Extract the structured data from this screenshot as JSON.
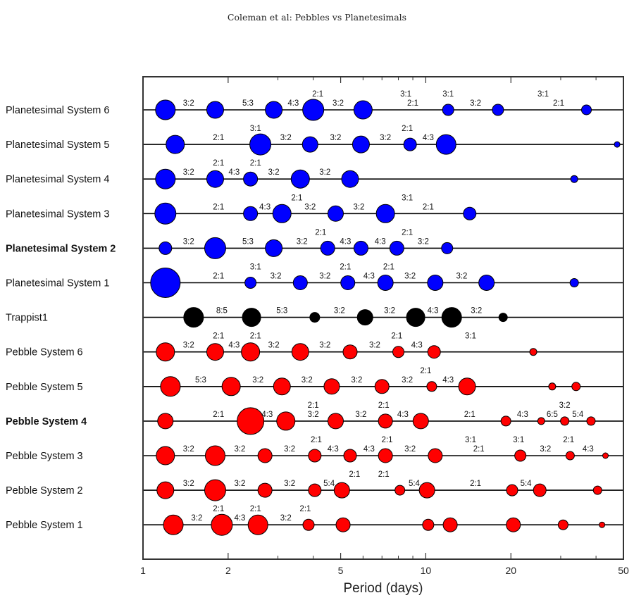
{
  "header": {
    "running_title": "Coleman et al: Pebbles vs Planetesimals"
  },
  "colors": {
    "planetesimal": "#0000ff",
    "trappist": "#000000",
    "pebble": "#ff0000"
  },
  "chart_data": {
    "type": "scatter",
    "xlabel": "Period (days)",
    "xscale": "log",
    "xlim": [
      1,
      50
    ],
    "xticks": [
      {
        "v": 1,
        "label": "1"
      },
      {
        "v": 2,
        "label": "2"
      },
      {
        "v": 5,
        "label": "5"
      },
      {
        "v": 10,
        "label": "10"
      },
      {
        "v": 20,
        "label": "20"
      },
      {
        "v": 50,
        "label": "50"
      }
    ],
    "rows": [
      {
        "label": "Planetesimal System 6",
        "bold": false,
        "color": "planetesimal",
        "planets": [
          [
            1.2,
            14
          ],
          [
            1.8,
            12
          ],
          [
            2.9,
            12
          ],
          [
            4.0,
            15
          ],
          [
            6.0,
            13
          ],
          [
            12.0,
            8
          ],
          [
            18.0,
            8
          ],
          [
            37.0,
            7
          ]
        ],
        "annotations": [
          [
            1.45,
            "3:2",
            0
          ],
          [
            2.35,
            "5:3",
            0
          ],
          [
            3.4,
            "4:3",
            0
          ],
          [
            4.15,
            "2:1",
            1
          ],
          [
            4.9,
            "3:2",
            0
          ],
          [
            8.5,
            "3:1",
            1
          ],
          [
            9.0,
            "2:1",
            0
          ],
          [
            12.0,
            "3:1",
            1
          ],
          [
            15.0,
            "3:2",
            0
          ],
          [
            26.0,
            "3:1",
            1
          ],
          [
            29.5,
            "2:1",
            0
          ]
        ]
      },
      {
        "label": "Planetesimal System 5",
        "bold": false,
        "color": "planetesimal",
        "planets": [
          [
            1.3,
            13
          ],
          [
            2.6,
            15
          ],
          [
            3.9,
            11
          ],
          [
            5.9,
            12
          ],
          [
            8.8,
            9
          ],
          [
            11.8,
            14
          ],
          [
            47.5,
            4
          ]
        ],
        "annotations": [
          [
            1.85,
            "2:1",
            0
          ],
          [
            2.5,
            "3:1",
            1
          ],
          [
            3.2,
            "3:2",
            0
          ],
          [
            4.8,
            "3:2",
            0
          ],
          [
            7.2,
            "3:2",
            0
          ],
          [
            8.6,
            "2:1",
            1
          ],
          [
            10.2,
            "4:3",
            0
          ]
        ]
      },
      {
        "label": "Planetesimal System 4",
        "bold": false,
        "color": "planetesimal",
        "planets": [
          [
            1.2,
            14
          ],
          [
            1.8,
            12
          ],
          [
            2.4,
            10
          ],
          [
            3.6,
            13
          ],
          [
            5.4,
            12
          ],
          [
            33.5,
            5
          ]
        ],
        "annotations": [
          [
            1.45,
            "3:2",
            0
          ],
          [
            1.85,
            "2:1",
            1
          ],
          [
            2.1,
            "4:3",
            0
          ],
          [
            2.5,
            "2:1",
            1
          ],
          [
            2.9,
            "3:2",
            0
          ],
          [
            4.4,
            "3:2",
            0
          ]
        ]
      },
      {
        "label": "Planetesimal System 3",
        "bold": false,
        "color": "planetesimal",
        "planets": [
          [
            1.2,
            15
          ],
          [
            2.4,
            10
          ],
          [
            3.1,
            13
          ],
          [
            4.8,
            11
          ],
          [
            7.2,
            13
          ],
          [
            14.3,
            9
          ]
        ],
        "annotations": [
          [
            1.85,
            "2:1",
            0
          ],
          [
            2.7,
            "4:3",
            0
          ],
          [
            3.5,
            "2:1",
            1
          ],
          [
            3.9,
            "3:2",
            0
          ],
          [
            5.8,
            "3:2",
            0
          ],
          [
            8.6,
            "3:1",
            1
          ],
          [
            10.2,
            "2:1",
            0
          ]
        ]
      },
      {
        "label": "Planetesimal System 2",
        "bold": true,
        "color": "planetesimal",
        "planets": [
          [
            1.2,
            9
          ],
          [
            1.8,
            15
          ],
          [
            2.9,
            12
          ],
          [
            4.5,
            10
          ],
          [
            5.9,
            10
          ],
          [
            7.9,
            10
          ],
          [
            11.9,
            8
          ]
        ],
        "annotations": [
          [
            1.45,
            "3:2",
            0
          ],
          [
            2.35,
            "5:3",
            0
          ],
          [
            3.65,
            "3:2",
            0
          ],
          [
            4.25,
            "2:1",
            1
          ],
          [
            5.2,
            "4:3",
            0
          ],
          [
            6.9,
            "4:3",
            0
          ],
          [
            8.6,
            "2:1",
            1
          ],
          [
            9.8,
            "3:2",
            0
          ]
        ]
      },
      {
        "label": "Planetesimal System 1",
        "bold": false,
        "color": "planetesimal",
        "planets": [
          [
            1.2,
            21
          ],
          [
            2.4,
            8
          ],
          [
            3.6,
            10
          ],
          [
            5.3,
            10
          ],
          [
            7.2,
            11
          ],
          [
            10.8,
            11
          ],
          [
            16.4,
            11
          ],
          [
            33.5,
            6
          ]
        ],
        "annotations": [
          [
            1.85,
            "2:1",
            0
          ],
          [
            2.5,
            "3:1",
            1
          ],
          [
            2.95,
            "3:2",
            0
          ],
          [
            4.4,
            "3:2",
            0
          ],
          [
            5.2,
            "2:1",
            1
          ],
          [
            6.3,
            "4:3",
            0
          ],
          [
            7.4,
            "2:1",
            1
          ],
          [
            8.8,
            "3:2",
            0
          ],
          [
            13.4,
            "3:2",
            0
          ]
        ]
      },
      {
        "label": "Trappist1",
        "bold": false,
        "color": "trappist",
        "planets": [
          [
            1.51,
            14
          ],
          [
            2.42,
            13
          ],
          [
            4.05,
            7
          ],
          [
            6.1,
            11
          ],
          [
            9.21,
            13
          ],
          [
            12.35,
            14
          ],
          [
            18.77,
            6
          ]
        ],
        "annotations": [
          [
            1.9,
            "8:5",
            0
          ],
          [
            3.1,
            "5:3",
            0
          ],
          [
            4.95,
            "3:2",
            0
          ],
          [
            7.45,
            "3:2",
            0
          ],
          [
            10.6,
            "4:3",
            0
          ],
          [
            15.1,
            "3:2",
            0
          ]
        ]
      },
      {
        "label": "Pebble System 6",
        "bold": false,
        "color": "pebble",
        "planets": [
          [
            1.2,
            13
          ],
          [
            1.8,
            12
          ],
          [
            2.4,
            13
          ],
          [
            3.6,
            12
          ],
          [
            5.4,
            10
          ],
          [
            8.0,
            8
          ],
          [
            10.7,
            9
          ],
          [
            24.0,
            5
          ]
        ],
        "annotations": [
          [
            1.45,
            "3:2",
            0
          ],
          [
            1.85,
            "2:1",
            1
          ],
          [
            2.1,
            "4:3",
            0
          ],
          [
            2.5,
            "2:1",
            1
          ],
          [
            2.9,
            "3:2",
            0
          ],
          [
            4.4,
            "3:2",
            0
          ],
          [
            6.6,
            "3:2",
            0
          ],
          [
            7.9,
            "2:1",
            1
          ],
          [
            9.3,
            "4:3",
            0
          ],
          [
            14.4,
            "3:1",
            1
          ]
        ]
      },
      {
        "label": "Pebble System 5",
        "bold": false,
        "color": "pebble",
        "planets": [
          [
            1.25,
            14
          ],
          [
            2.05,
            13
          ],
          [
            3.1,
            12
          ],
          [
            4.65,
            11
          ],
          [
            7.0,
            10
          ],
          [
            10.5,
            7
          ],
          [
            14.0,
            12
          ],
          [
            28.0,
            5
          ],
          [
            34.0,
            6
          ]
        ],
        "annotations": [
          [
            1.6,
            "5:3",
            0
          ],
          [
            2.55,
            "3:2",
            0
          ],
          [
            3.8,
            "3:2",
            0
          ],
          [
            5.7,
            "3:2",
            0
          ],
          [
            8.6,
            "3:2",
            0
          ],
          [
            10.0,
            "2:1",
            1
          ],
          [
            12.0,
            "4:3",
            0
          ]
        ]
      },
      {
        "label": "Pebble System 4",
        "bold": true,
        "color": "pebble",
        "planets": [
          [
            1.2,
            11
          ],
          [
            2.4,
            19
          ],
          [
            3.2,
            13
          ],
          [
            4.8,
            11
          ],
          [
            7.2,
            10
          ],
          [
            9.6,
            11
          ],
          [
            19.2,
            7
          ],
          [
            25.6,
            5
          ],
          [
            31.0,
            6
          ],
          [
            38.4,
            6
          ]
        ],
        "annotations": [
          [
            1.85,
            "2:1",
            0
          ],
          [
            2.75,
            "4:3",
            0
          ],
          [
            4.0,
            "2:1",
            1
          ],
          [
            4.0,
            "3:2",
            0
          ],
          [
            5.9,
            "3:2",
            0
          ],
          [
            7.1,
            "2:1",
            1
          ],
          [
            8.3,
            "4:3",
            0
          ],
          [
            14.3,
            "2:1",
            0
          ],
          [
            22.0,
            "4:3",
            0
          ],
          [
            28.0,
            "6:5",
            0
          ],
          [
            31.0,
            "3:2",
            1
          ],
          [
            34.5,
            "5:4",
            0
          ]
        ]
      },
      {
        "label": "Pebble System 3",
        "bold": false,
        "color": "pebble",
        "planets": [
          [
            1.2,
            13
          ],
          [
            1.8,
            14
          ],
          [
            2.7,
            10
          ],
          [
            4.05,
            9
          ],
          [
            5.4,
            9
          ],
          [
            7.2,
            10
          ],
          [
            10.8,
            10
          ],
          [
            21.6,
            8
          ],
          [
            32.4,
            6
          ],
          [
            43.2,
            4
          ]
        ],
        "annotations": [
          [
            1.45,
            "3:2",
            0
          ],
          [
            2.2,
            "3:2",
            0
          ],
          [
            3.3,
            "3:2",
            0
          ],
          [
            4.1,
            "2:1",
            1
          ],
          [
            4.7,
            "4:3",
            0
          ],
          [
            6.3,
            "4:3",
            0
          ],
          [
            7.3,
            "2:1",
            1
          ],
          [
            8.8,
            "3:2",
            0
          ],
          [
            14.4,
            "3:1",
            1
          ],
          [
            15.4,
            "2:1",
            0
          ],
          [
            21.3,
            "3:1",
            1
          ],
          [
            26.5,
            "3:2",
            0
          ],
          [
            32.0,
            "2:1",
            1
          ],
          [
            37.5,
            "4:3",
            0
          ]
        ]
      },
      {
        "label": "Pebble System 2",
        "bold": false,
        "color": "pebble",
        "planets": [
          [
            1.2,
            12
          ],
          [
            1.8,
            15
          ],
          [
            2.7,
            10
          ],
          [
            4.05,
            9
          ],
          [
            5.05,
            11
          ],
          [
            8.1,
            7
          ],
          [
            10.1,
            11
          ],
          [
            20.2,
            8
          ],
          [
            25.3,
            9
          ],
          [
            40.5,
            6
          ]
        ],
        "annotations": [
          [
            1.45,
            "3:2",
            0
          ],
          [
            2.2,
            "3:2",
            0
          ],
          [
            3.3,
            "3:2",
            0
          ],
          [
            4.55,
            "5:4",
            0
          ],
          [
            5.6,
            "2:1",
            1
          ],
          [
            7.1,
            "2:1",
            1
          ],
          [
            9.1,
            "5:4",
            0
          ],
          [
            15.0,
            "2:1",
            0
          ],
          [
            22.6,
            "5:4",
            0
          ]
        ]
      },
      {
        "label": "Pebble System 1",
        "bold": false,
        "color": "pebble",
        "planets": [
          [
            1.28,
            14
          ],
          [
            1.9,
            15
          ],
          [
            2.55,
            14
          ],
          [
            3.85,
            8
          ],
          [
            5.1,
            10
          ],
          [
            10.2,
            8
          ],
          [
            12.2,
            10
          ],
          [
            20.4,
            10
          ],
          [
            30.6,
            7
          ],
          [
            42.0,
            4
          ]
        ],
        "annotations": [
          [
            1.55,
            "3:2",
            0
          ],
          [
            1.85,
            "2:1",
            1
          ],
          [
            2.2,
            "4:3",
            0
          ],
          [
            2.5,
            "2:1",
            1
          ],
          [
            3.2,
            "3:2",
            0
          ],
          [
            3.75,
            "2:1",
            1
          ]
        ]
      }
    ]
  }
}
